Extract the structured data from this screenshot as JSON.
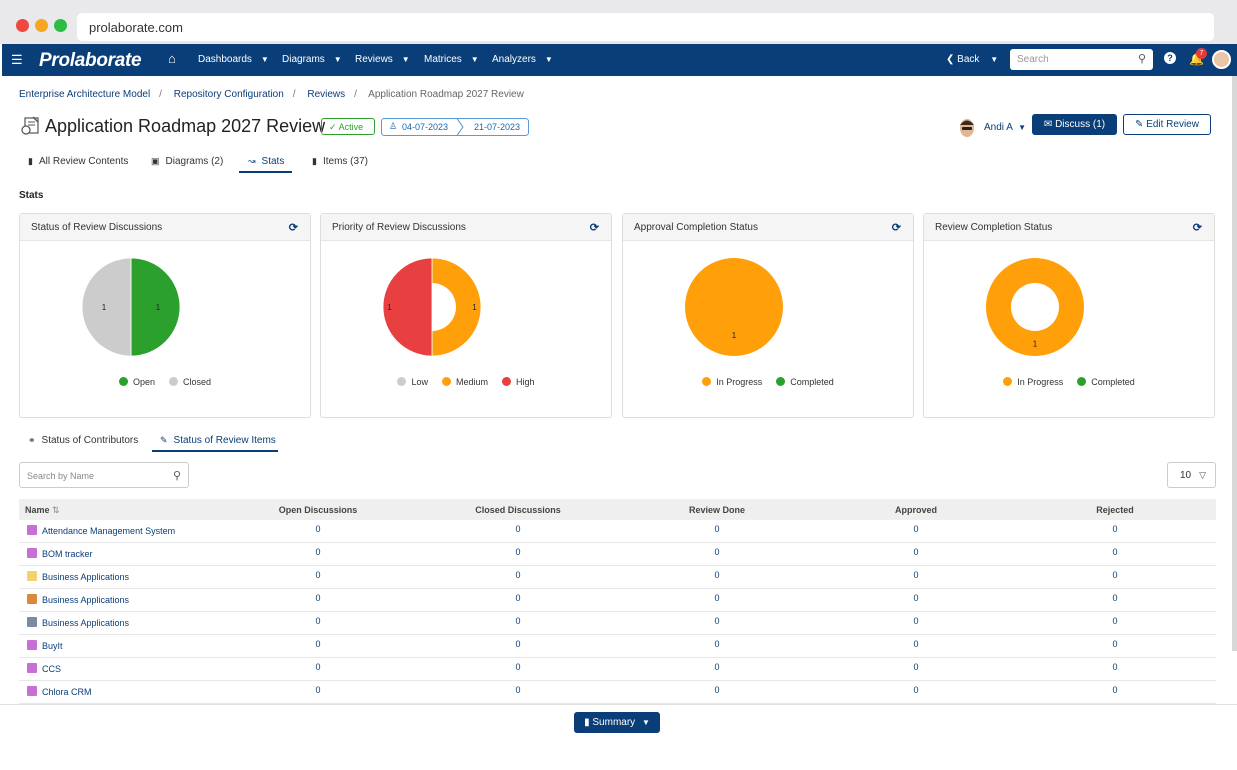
{
  "browser": {
    "url": "prolaborate.com"
  },
  "nav": {
    "logo": "Prolaborate",
    "menus": [
      "Dashboards",
      "Diagrams",
      "Reviews",
      "Matrices",
      "Analyzers"
    ],
    "back": "Back",
    "search_placeholder": "Search",
    "notification_count": "7"
  },
  "breadcrumb": [
    "Enterprise Architecture Model",
    "Repository Configuration",
    "Reviews",
    "Application Roadmap 2027 Review"
  ],
  "review": {
    "title": "Application Roadmap 2027 Review",
    "status": "Active",
    "start_date": "04-07-2023",
    "end_date": "21-07-2023",
    "user": "Andi A",
    "discuss_label": "Discuss (1)",
    "edit_label": "Edit Review"
  },
  "tabs": [
    "All Review Contents",
    "Diagrams (2)",
    "Stats",
    "Items (37)"
  ],
  "stats_heading": "Stats",
  "colors": {
    "open": "#2ca02c",
    "closed": "#cccccc",
    "low": "#cccccc",
    "medium": "#ff9f0a",
    "high": "#e84040",
    "in_progress": "#ff9f0a",
    "completed": "#2ca02c",
    "brand": "#0a3e78"
  },
  "cards": [
    {
      "title": "Status of Review Discussions",
      "legend": [
        "Open",
        "Closed"
      ]
    },
    {
      "title": "Priority of Review Discussions",
      "legend": [
        "Low",
        "Medium",
        "High"
      ]
    },
    {
      "title": "Approval Completion Status",
      "legend": [
        "In Progress",
        "Completed"
      ]
    },
    {
      "title": "Review Completion Status",
      "legend": [
        "In Progress",
        "Completed"
      ]
    }
  ],
  "chart_data": [
    {
      "type": "pie",
      "title": "Status of Review Discussions",
      "labels": [
        "Open",
        "Closed"
      ],
      "values": [
        1,
        1
      ]
    },
    {
      "type": "pie",
      "title": "Priority of Review Discussions",
      "labels": [
        "Low",
        "Medium",
        "High"
      ],
      "values": [
        0,
        1,
        1
      ]
    },
    {
      "type": "pie",
      "title": "Approval Completion Status",
      "labels": [
        "In Progress",
        "Completed"
      ],
      "values": [
        1,
        0
      ]
    },
    {
      "type": "pie",
      "title": "Review Completion Status",
      "labels": [
        "In Progress",
        "Completed"
      ],
      "values": [
        1,
        0
      ]
    }
  ],
  "subtabs": [
    "Status of Contributors",
    "Status of Review Items"
  ],
  "table_search_placeholder": "Search by Name",
  "page_size": "10",
  "table": {
    "columns": [
      "Name",
      "Open Discussions",
      "Closed Discussions",
      "Review Done",
      "Approved",
      "Rejected"
    ],
    "rows": [
      {
        "name": "Attendance Management System",
        "icon": "component-icon",
        "values": [
          "0",
          "0",
          "0",
          "0",
          "0"
        ]
      },
      {
        "name": "BOM tracker",
        "icon": "component-icon",
        "values": [
          "0",
          "0",
          "0",
          "0",
          "0"
        ]
      },
      {
        "name": "Business Applications",
        "icon": "folder-icon",
        "values": [
          "0",
          "0",
          "0",
          "0",
          "0"
        ]
      },
      {
        "name": "Business Applications",
        "icon": "hierarchy-icon",
        "values": [
          "0",
          "0",
          "0",
          "0",
          "0"
        ]
      },
      {
        "name": "Business Applications",
        "icon": "diagram-icon",
        "values": [
          "0",
          "0",
          "0",
          "0",
          "0"
        ]
      },
      {
        "name": "BuyIt",
        "icon": "component-icon",
        "values": [
          "0",
          "0",
          "0",
          "0",
          "0"
        ]
      },
      {
        "name": "CCS",
        "icon": "component-icon",
        "values": [
          "0",
          "0",
          "0",
          "0",
          "0"
        ]
      },
      {
        "name": "Chlora CRM",
        "icon": "component-icon",
        "values": [
          "0",
          "0",
          "0",
          "0",
          "0"
        ]
      }
    ]
  },
  "summary_label": "Summary"
}
